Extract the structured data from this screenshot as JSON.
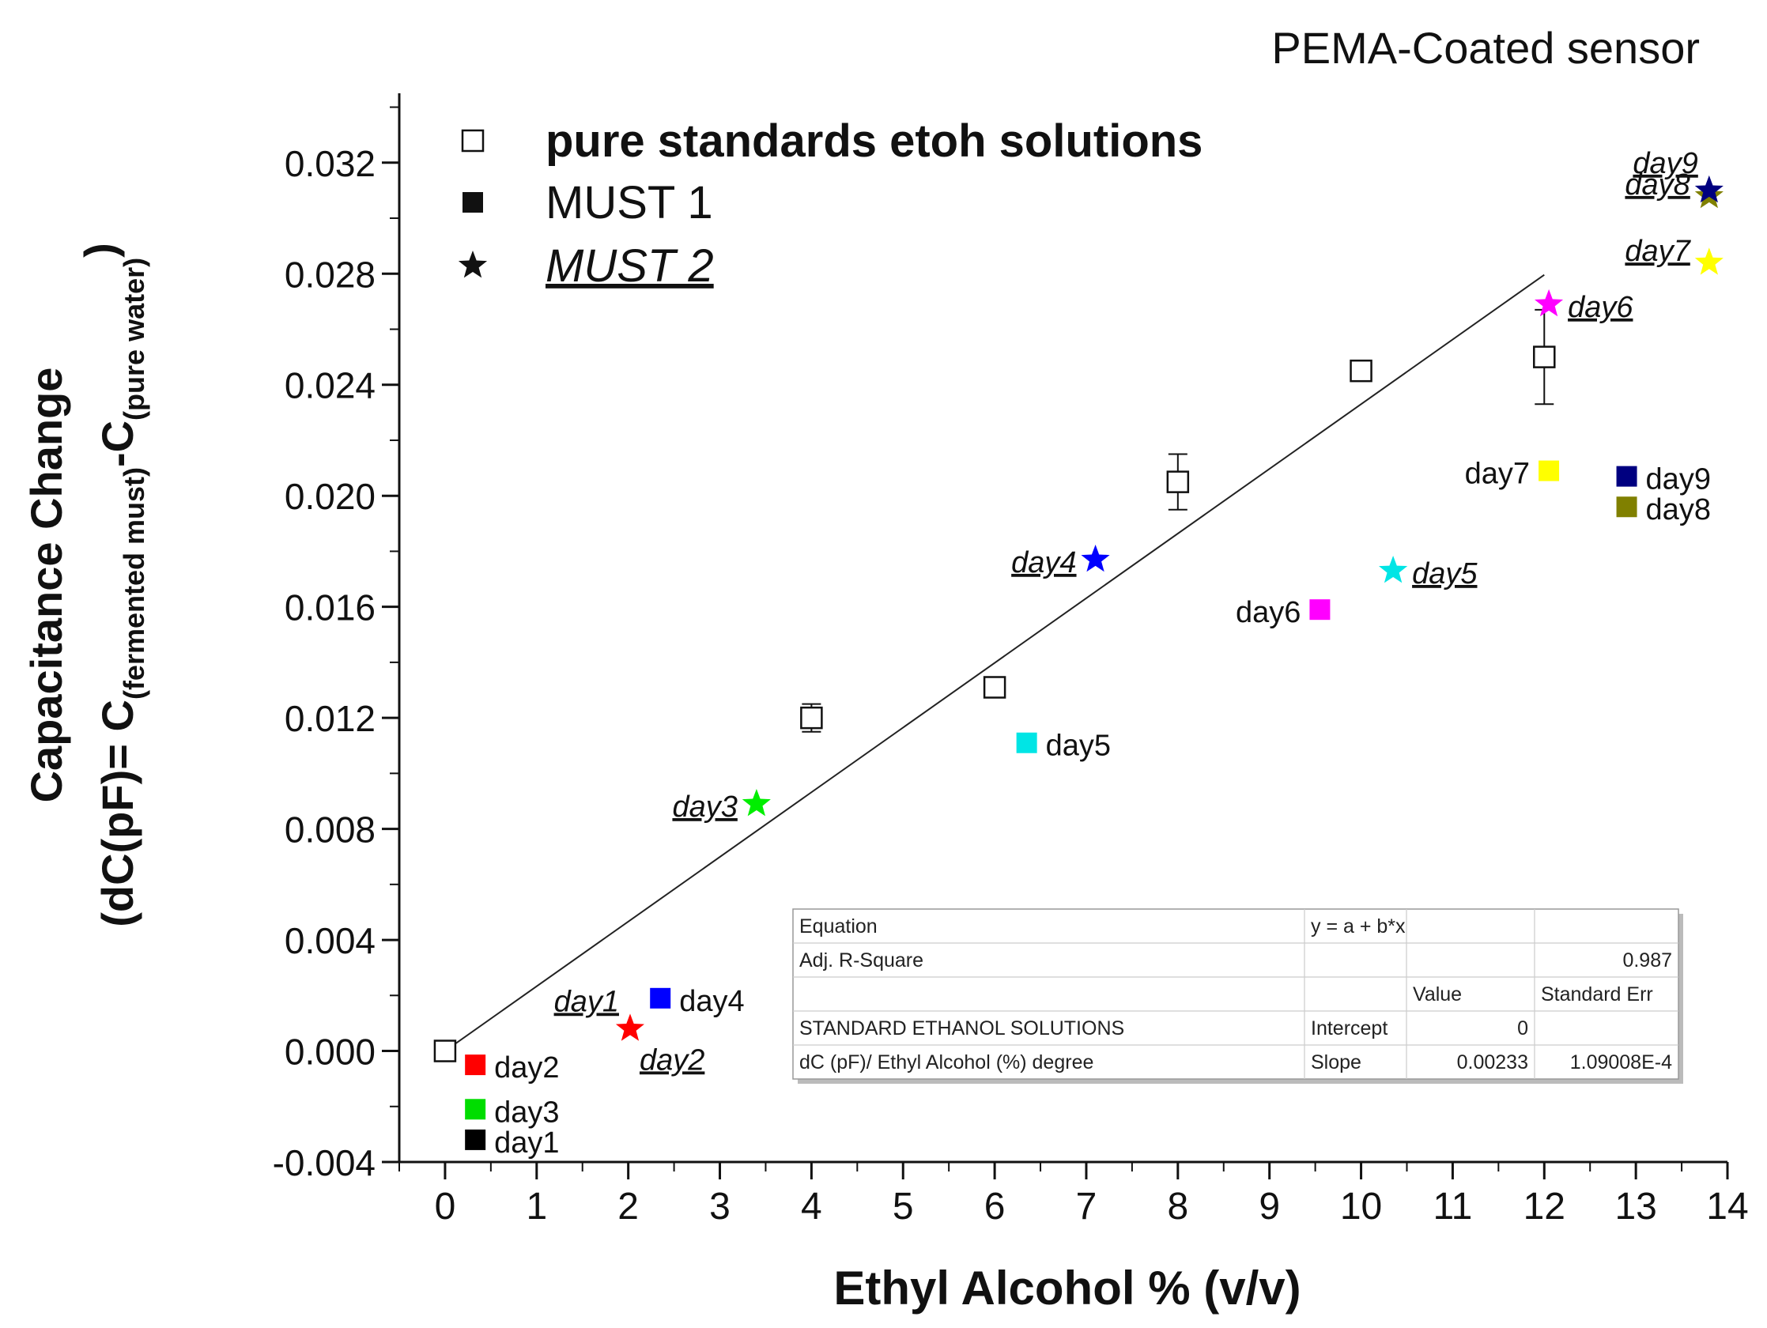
{
  "chart_data": {
    "type": "scatter",
    "title": "PEMA-Coated sensor",
    "xlabel": "Ethyl Alcohol % (v/v)",
    "ylabel_line1": "Capacitance Change",
    "ylabel_line2_parts": [
      "(dC(pF)= C",
      "(fermented must)",
      "-C",
      "(pure water)",
      ")"
    ],
    "xlim": [
      -0.5,
      14
    ],
    "ylim": [
      -0.004,
      0.0345
    ],
    "x_ticks": [
      0,
      1,
      2,
      3,
      4,
      5,
      6,
      7,
      8,
      9,
      10,
      11,
      12,
      13,
      14
    ],
    "y_ticks": [
      -0.004,
      0.0,
      0.004,
      0.008,
      0.012,
      0.016,
      0.02,
      0.024,
      0.028,
      0.032
    ],
    "y_tick_labels": [
      "-0.004",
      "0.000",
      "0.004",
      "0.008",
      "0.012",
      "0.016",
      "0.020",
      "0.024",
      "0.028",
      "0.032"
    ],
    "legend": {
      "position": "top-left",
      "entries": [
        {
          "label": "pure standards etoh solutions",
          "marker": "open-square",
          "style": "bold"
        },
        {
          "label": "MUST 1",
          "marker": "filled-square",
          "style": "normal"
        },
        {
          "label": "MUST 2",
          "marker": "star",
          "style": "italic-underline"
        }
      ]
    },
    "series": [
      {
        "name": "pure standards etoh solutions",
        "marker": "open-square",
        "points": [
          {
            "x": 0,
            "y": 0.0,
            "err": 0.0001
          },
          {
            "x": 4,
            "y": 0.012,
            "err": 0.0005
          },
          {
            "x": 6,
            "y": 0.0131,
            "err": 0.0003
          },
          {
            "x": 8,
            "y": 0.0205,
            "err": 0.001
          },
          {
            "x": 10,
            "y": 0.0245,
            "err": 0.0002
          },
          {
            "x": 12,
            "y": 0.025,
            "err": 0.0017
          }
        ]
      },
      {
        "name": "MUST 1",
        "marker": "filled-square",
        "points": [
          {
            "label": "day1",
            "x": 0.33,
            "y": -0.0032,
            "color": "#000000",
            "label_side": "right"
          },
          {
            "label": "day2",
            "x": 0.33,
            "y": -0.0005,
            "color": "#ff0000",
            "label_side": "right"
          },
          {
            "label": "day3",
            "x": 0.33,
            "y": -0.0021,
            "color": "#00dd00",
            "label_side": "right"
          },
          {
            "label": "day4",
            "x": 2.35,
            "y": 0.0019,
            "color": "#0000ff",
            "label_side": "right"
          },
          {
            "label": "day5",
            "x": 6.35,
            "y": 0.0111,
            "color": "#00e5e5",
            "label_side": "right"
          },
          {
            "label": "day6",
            "x": 9.55,
            "y": 0.0159,
            "color": "#ff00ff",
            "label_side": "left"
          },
          {
            "label": "day7",
            "x": 12.05,
            "y": 0.0209,
            "color": "#ffff00",
            "label_side": "left"
          },
          {
            "label": "day8",
            "x": 12.9,
            "y": 0.0196,
            "color": "#808000",
            "label_side": "right"
          },
          {
            "label": "day9",
            "x": 12.9,
            "y": 0.0207,
            "color": "#000080",
            "label_side": "right"
          }
        ]
      },
      {
        "name": "MUST 2",
        "marker": "star",
        "points": [
          {
            "label": "day1",
            "x": 2.02,
            "y": 0.0008,
            "color": "#ff0000",
            "label_side": "upper-left"
          },
          {
            "label": "day2",
            "x": 2.02,
            "y": 0.0008,
            "color": "#ff0000",
            "label_side": "lower-right"
          },
          {
            "label": "day3",
            "x": 3.4,
            "y": 0.0089,
            "color": "#00ee00",
            "label_side": "left"
          },
          {
            "label": "day4",
            "x": 7.1,
            "y": 0.0177,
            "color": "#0000ff",
            "label_side": "left"
          },
          {
            "label": "day5",
            "x": 10.35,
            "y": 0.0173,
            "color": "#00e5e5",
            "label_side": "right"
          },
          {
            "label": "day6",
            "x": 12.05,
            "y": 0.0269,
            "color": "#ff00ff",
            "label_side": "right"
          },
          {
            "label": "day7",
            "x": 13.8,
            "y": 0.0284,
            "color": "#ffff00",
            "label_side": "left"
          },
          {
            "label": "day8",
            "x": 13.8,
            "y": 0.0308,
            "color": "#808000",
            "label_side": "left"
          },
          {
            "label": "day9",
            "x": 13.8,
            "y": 0.031,
            "color": "#000080",
            "label_side": "upper-left"
          }
        ]
      }
    ],
    "fit_line": {
      "intercept": 0,
      "slope": 0.00233,
      "x_range": [
        0,
        12
      ]
    },
    "fit_table": {
      "rows": [
        [
          "Equation",
          "y = a + b*x",
          "",
          ""
        ],
        [
          "Adj. R-Square",
          "",
          "",
          "0.987"
        ],
        [
          "",
          "",
          "Value",
          "Standard Err"
        ],
        [
          "STANDARD ETHANOL SOLUTIONS",
          "Intercept",
          "0",
          ""
        ],
        [
          "dC (pF)/ Ethyl Alcohol (%) degree",
          "Slope",
          "0.00233",
          "1.09008E-4"
        ]
      ]
    }
  }
}
